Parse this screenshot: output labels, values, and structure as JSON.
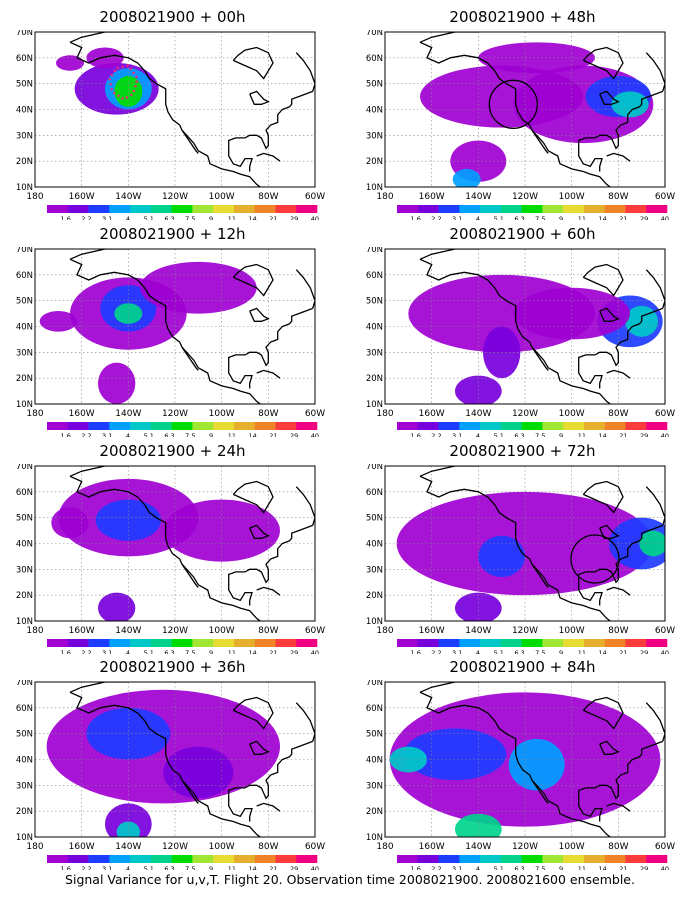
{
  "caption": "Signal Variance for u,v,T. Flight 20. Observation time 2008021900. 2008021600 ensemble.",
  "lat_labels": [
    "70N",
    "60N",
    "50N",
    "40N",
    "30N",
    "20N",
    "10N"
  ],
  "lon_labels": [
    "180",
    "160W",
    "140W",
    "120W",
    "100W",
    "80W",
    "60W"
  ],
  "colorbar": {
    "labels": [
      "1.6",
      "2.2",
      "3.1",
      "4",
      "5.1",
      "6.3",
      "7.5",
      "9",
      "11",
      "14",
      "21",
      "29",
      "40"
    ],
    "colors": [
      "#a000d2",
      "#7800dc",
      "#1e3cff",
      "#00a0ff",
      "#00c8c8",
      "#00d28c",
      "#00dc00",
      "#a0e632",
      "#e6dc32",
      "#e6af2d",
      "#f08228",
      "#fa3c3c",
      "#f00082"
    ]
  },
  "panels": [
    {
      "title": "2008021900 + 00h",
      "annotation": "pink-dotted-region",
      "intensity": "high-localized"
    },
    {
      "title": "2008021900 + 48h",
      "annotation": "black-circle",
      "intensity": "moderate"
    },
    {
      "title": "2008021900 + 12h",
      "annotation": "none",
      "intensity": "moderate"
    },
    {
      "title": "2008021900 + 60h",
      "annotation": "none",
      "intensity": "moderate"
    },
    {
      "title": "2008021900 + 24h",
      "annotation": "none",
      "intensity": "moderate"
    },
    {
      "title": "2008021900 + 72h",
      "annotation": "black-circle",
      "intensity": "moderate"
    },
    {
      "title": "2008021900 + 36h",
      "annotation": "none",
      "intensity": "moderate"
    },
    {
      "title": "2008021900 + 84h",
      "annotation": "none",
      "intensity": "moderate"
    }
  ]
}
